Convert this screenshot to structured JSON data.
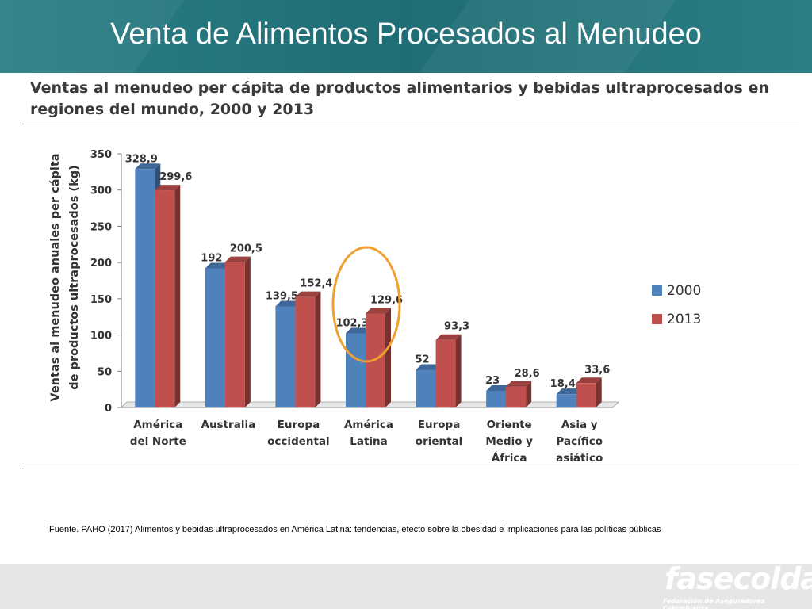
{
  "slide": {
    "title": "Venta de Alimentos Procesados al Menudeo",
    "source": "Fuente. PAHO (2017) Alimentos y bebidas ultraprocesados en América Latina: tendencias, efecto sobre la obesidad e implicaciones para las políticas públicas",
    "logo": "fasecolda",
    "logo_subtitle": "Federación de Aseguradores Colombianos"
  },
  "chart_data": {
    "type": "bar",
    "title": "Ventas al menudeo per cápita de productos alimentarios y bebidas ultraprocesados en regiones del mundo, 2000 y 2013",
    "ylabel": [
      "Ventas al menudeo anuales  per cápita",
      "de productos ultraprocesados (kg)"
    ],
    "xlabel": "",
    "ylim": [
      0,
      350
    ],
    "yticks": [
      0,
      50,
      100,
      150,
      200,
      250,
      300,
      350
    ],
    "grid": false,
    "legend": "right",
    "categories": [
      [
        "América",
        "del Norte"
      ],
      [
        "Australia"
      ],
      [
        "Europa",
        "occidental"
      ],
      [
        "América",
        "Latina"
      ],
      [
        "Europa",
        "oriental"
      ],
      [
        "Oriente",
        "Medio y",
        "África"
      ],
      [
        "Asia y",
        "Pacífico",
        "asiático"
      ]
    ],
    "series": [
      {
        "name": "2000",
        "color": "#4f81bd",
        "values": [
          328.9,
          192,
          139.5,
          102.3,
          52,
          23,
          18.4
        ],
        "labels": [
          "328,9",
          "192",
          "139,5",
          "102,3",
          "52",
          "23",
          "18,4"
        ]
      },
      {
        "name": "2013",
        "color": "#c0504d",
        "values": [
          299.6,
          200.5,
          152.4,
          129.6,
          93.3,
          28.6,
          33.6
        ],
        "labels": [
          "299,6",
          "200,5",
          "152,4",
          "129,6",
          "93,3",
          "28,6",
          "33,6"
        ]
      }
    ],
    "highlight": {
      "category_index": 3,
      "shape": "ellipse",
      "color": "#f0a030"
    }
  }
}
